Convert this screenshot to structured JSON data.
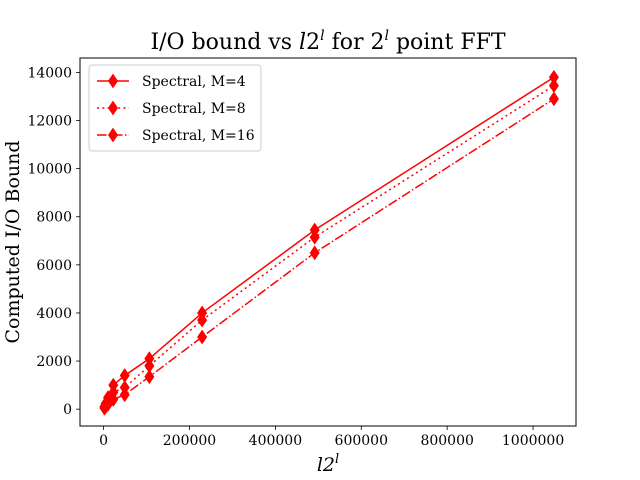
{
  "chart_data": {
    "type": "line",
    "title": "I/O bound vs l2^l for 2^l point FFT",
    "xlabel": "l2^l",
    "ylabel": "Computed I/O Bound",
    "xlim": [
      -55000,
      1100000
    ],
    "ylim": [
      -700,
      14600
    ],
    "x_ticks": [
      0,
      200000,
      400000,
      600000,
      800000,
      1000000
    ],
    "x_tick_labels": [
      "0",
      "200000",
      "400000",
      "600000",
      "800000",
      "1000000"
    ],
    "y_ticks": [
      0,
      2000,
      4000,
      6000,
      8000,
      10000,
      12000,
      14000
    ],
    "y_tick_labels": [
      "0",
      "2000",
      "4000",
      "6000",
      "8000",
      "10000",
      "12000",
      "14000"
    ],
    "grid": false,
    "legend_position": "top-left",
    "color": "#ff0000",
    "marker": "thin_diamond",
    "x": [
      2048,
      4608,
      10240,
      22528,
      49152,
      106496,
      229376,
      491520,
      1048576
    ],
    "series": [
      {
        "name": "Spectral, M=4",
        "linestyle": "solid",
        "values": [
          110,
          230,
          480,
          1000,
          1400,
          2100,
          4000,
          7450,
          13800
        ]
      },
      {
        "name": "Spectral, M=8",
        "linestyle": "dotted",
        "values": [
          75,
          150,
          330,
          700,
          900,
          1800,
          3700,
          7150,
          13450
        ]
      },
      {
        "name": "Spectral, M=16",
        "linestyle": "dashdot",
        "values": [
          40,
          100,
          200,
          400,
          600,
          1350,
          3000,
          6500,
          12900
        ]
      }
    ]
  }
}
